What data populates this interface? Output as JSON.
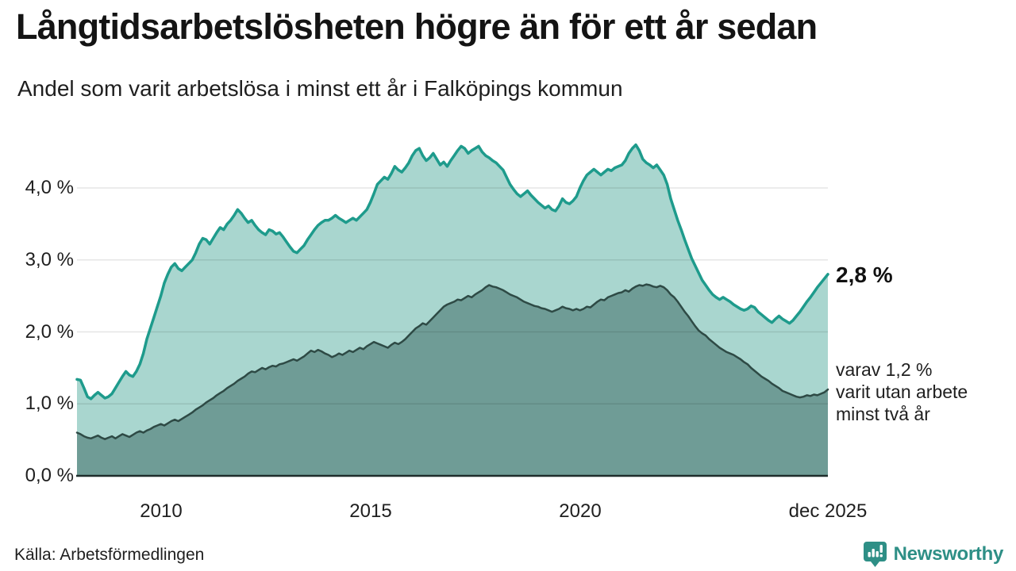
{
  "title": "Långtidsarbetslösheten högre än för ett år sedan",
  "subtitle": "Andel som varit arbetslösa i minst ett år i Falköpings kommun",
  "source": "Källa: Arbetsförmedlingen",
  "logo": {
    "name": "Newsworthy",
    "color": "#2e8f86"
  },
  "annotations": {
    "latest_total": "2,8 %",
    "subset_line1": "varav 1,2 %",
    "subset_line2": "varit utan arbete",
    "subset_line3": "minst två år"
  },
  "chart_data": {
    "type": "area",
    "title": "Långtidsarbetslösheten högre än för ett år sedan",
    "subtitle": "Andel som varit arbetslösa i minst ett år i Falköpings kommun",
    "x_unit": "month",
    "x_range": [
      "2008-01",
      "2025-12"
    ],
    "ylim": [
      0,
      4.6
    ],
    "grid": true,
    "grid_values": [
      1,
      2,
      3,
      4
    ],
    "grid_color": "rgba(0,0,0,0.10)",
    "axis_color": "#1f2d2b",
    "y_ticks": [
      {
        "label": "0,0 %",
        "value": 0
      },
      {
        "label": "1,0 %",
        "value": 1
      },
      {
        "label": "2,0 %",
        "value": 2
      },
      {
        "label": "3,0 %",
        "value": 3
      },
      {
        "label": "4,0 %",
        "value": 4
      }
    ],
    "x_ticks": [
      {
        "label": "2010",
        "index": 24
      },
      {
        "label": "2015",
        "index": 84
      },
      {
        "label": "2020",
        "index": 144
      },
      {
        "label": "dec 2025",
        "index": 215
      }
    ],
    "series": [
      {
        "name": "Andel arbetslösa minst ett år",
        "latest_value": 2.8,
        "line_color": "#1e9b8c",
        "fill_color": "#a9d6cf",
        "line_width": 3.5,
        "values": [
          1.34,
          1.33,
          1.22,
          1.1,
          1.07,
          1.12,
          1.16,
          1.12,
          1.08,
          1.1,
          1.14,
          1.22,
          1.3,
          1.38,
          1.45,
          1.4,
          1.38,
          1.45,
          1.55,
          1.7,
          1.9,
          2.05,
          2.2,
          2.35,
          2.5,
          2.68,
          2.8,
          2.9,
          2.95,
          2.88,
          2.85,
          2.9,
          2.95,
          3.0,
          3.1,
          3.22,
          3.3,
          3.28,
          3.22,
          3.3,
          3.38,
          3.45,
          3.42,
          3.5,
          3.55,
          3.62,
          3.7,
          3.65,
          3.58,
          3.52,
          3.55,
          3.48,
          3.42,
          3.38,
          3.35,
          3.42,
          3.4,
          3.36,
          3.38,
          3.32,
          3.25,
          3.18,
          3.12,
          3.1,
          3.15,
          3.2,
          3.28,
          3.35,
          3.42,
          3.48,
          3.52,
          3.55,
          3.55,
          3.58,
          3.62,
          3.58,
          3.55,
          3.52,
          3.55,
          3.58,
          3.55,
          3.6,
          3.65,
          3.7,
          3.8,
          3.92,
          4.05,
          4.1,
          4.15,
          4.12,
          4.2,
          4.3,
          4.25,
          4.22,
          4.28,
          4.35,
          4.45,
          4.52,
          4.55,
          4.45,
          4.38,
          4.42,
          4.48,
          4.4,
          4.32,
          4.36,
          4.3,
          4.38,
          4.45,
          4.52,
          4.58,
          4.55,
          4.48,
          4.52,
          4.55,
          4.58,
          4.5,
          4.45,
          4.42,
          4.38,
          4.35,
          4.3,
          4.25,
          4.15,
          4.05,
          3.98,
          3.92,
          3.88,
          3.92,
          3.96,
          3.9,
          3.85,
          3.8,
          3.76,
          3.72,
          3.75,
          3.7,
          3.68,
          3.75,
          3.85,
          3.8,
          3.78,
          3.82,
          3.88,
          4.0,
          4.1,
          4.18,
          4.22,
          4.26,
          4.22,
          4.18,
          4.22,
          4.26,
          4.24,
          4.28,
          4.3,
          4.32,
          4.38,
          4.48,
          4.55,
          4.6,
          4.52,
          4.4,
          4.35,
          4.32,
          4.28,
          4.32,
          4.25,
          4.18,
          4.05,
          3.85,
          3.7,
          3.55,
          3.42,
          3.28,
          3.15,
          3.02,
          2.92,
          2.82,
          2.72,
          2.65,
          2.58,
          2.52,
          2.48,
          2.45,
          2.48,
          2.45,
          2.42,
          2.38,
          2.35,
          2.32,
          2.3,
          2.32,
          2.36,
          2.34,
          2.28,
          2.24,
          2.2,
          2.16,
          2.13,
          2.18,
          2.22,
          2.18,
          2.15,
          2.12,
          2.16,
          2.22,
          2.28,
          2.35,
          2.42,
          2.48,
          2.55,
          2.62,
          2.68,
          2.74,
          2.8
        ]
      },
      {
        "name": "varav utan arbete minst två år",
        "latest_value": 1.2,
        "line_color": "#2e4a45",
        "fill_color": "#6f9c96",
        "line_width": 2.5,
        "values": [
          0.6,
          0.58,
          0.55,
          0.53,
          0.52,
          0.54,
          0.56,
          0.53,
          0.51,
          0.53,
          0.55,
          0.52,
          0.55,
          0.58,
          0.56,
          0.54,
          0.57,
          0.6,
          0.62,
          0.6,
          0.63,
          0.65,
          0.68,
          0.7,
          0.72,
          0.7,
          0.73,
          0.76,
          0.78,
          0.76,
          0.79,
          0.82,
          0.85,
          0.88,
          0.92,
          0.95,
          0.98,
          1.02,
          1.05,
          1.08,
          1.12,
          1.15,
          1.18,
          1.22,
          1.25,
          1.28,
          1.32,
          1.35,
          1.38,
          1.42,
          1.45,
          1.44,
          1.47,
          1.5,
          1.48,
          1.51,
          1.53,
          1.52,
          1.55,
          1.56,
          1.58,
          1.6,
          1.62,
          1.6,
          1.63,
          1.66,
          1.7,
          1.74,
          1.72,
          1.75,
          1.73,
          1.7,
          1.68,
          1.65,
          1.67,
          1.7,
          1.68,
          1.71,
          1.74,
          1.72,
          1.75,
          1.78,
          1.76,
          1.8,
          1.83,
          1.86,
          1.84,
          1.82,
          1.8,
          1.78,
          1.82,
          1.85,
          1.83,
          1.86,
          1.9,
          1.95,
          2.0,
          2.05,
          2.08,
          2.12,
          2.1,
          2.15,
          2.2,
          2.25,
          2.3,
          2.35,
          2.38,
          2.4,
          2.42,
          2.45,
          2.44,
          2.47,
          2.5,
          2.48,
          2.52,
          2.55,
          2.58,
          2.62,
          2.65,
          2.63,
          2.62,
          2.6,
          2.58,
          2.55,
          2.52,
          2.5,
          2.48,
          2.45,
          2.42,
          2.4,
          2.38,
          2.36,
          2.35,
          2.33,
          2.32,
          2.3,
          2.28,
          2.3,
          2.32,
          2.35,
          2.33,
          2.32,
          2.3,
          2.32,
          2.3,
          2.32,
          2.35,
          2.34,
          2.38,
          2.42,
          2.45,
          2.44,
          2.48,
          2.5,
          2.52,
          2.54,
          2.55,
          2.58,
          2.56,
          2.6,
          2.63,
          2.65,
          2.64,
          2.66,
          2.65,
          2.63,
          2.62,
          2.64,
          2.62,
          2.58,
          2.52,
          2.48,
          2.42,
          2.35,
          2.28,
          2.22,
          2.15,
          2.08,
          2.02,
          1.98,
          1.95,
          1.9,
          1.86,
          1.82,
          1.78,
          1.75,
          1.72,
          1.7,
          1.68,
          1.65,
          1.62,
          1.58,
          1.55,
          1.5,
          1.46,
          1.42,
          1.38,
          1.35,
          1.32,
          1.28,
          1.25,
          1.22,
          1.18,
          1.16,
          1.14,
          1.12,
          1.1,
          1.09,
          1.1,
          1.12,
          1.11,
          1.13,
          1.12,
          1.14,
          1.16,
          1.2
        ]
      }
    ]
  }
}
